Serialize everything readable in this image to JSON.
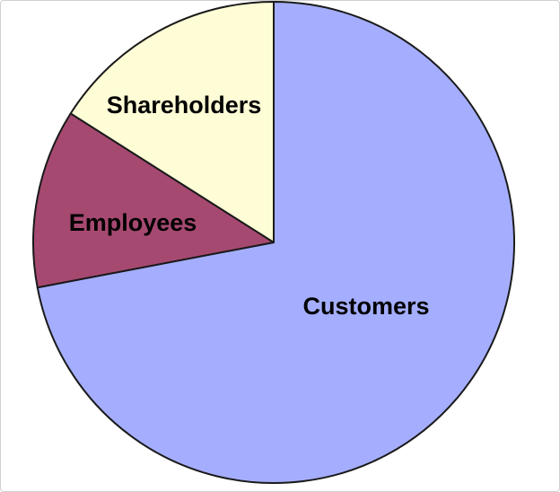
{
  "chart_data": {
    "type": "pie",
    "title": "",
    "slices": [
      {
        "label": "Customers",
        "value": 72,
        "color": "#a5aefe"
      },
      {
        "label": "Employees",
        "value": 12,
        "color": "#a64971"
      },
      {
        "label": "Shareholders",
        "value": 16,
        "color": "#fefdd6"
      }
    ],
    "start_angle_deg": 0,
    "direction": "clockwise",
    "legend": "none",
    "labels_on_slices": true
  }
}
